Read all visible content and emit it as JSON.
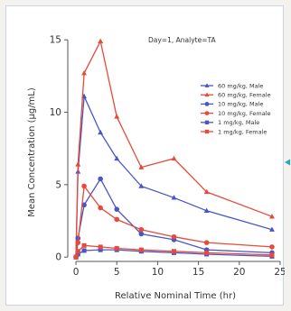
{
  "chart_data": {
    "type": "line",
    "title": "Day=1, Analyte=TA",
    "xlabel": "Relative Nominal Time (hr)",
    "ylabel": "Mean Concentration (µg/mL)",
    "xlim": [
      -1,
      25
    ],
    "ylim": [
      -0.3,
      15.2
    ],
    "xticks": [
      0,
      5,
      10,
      15,
      20,
      25
    ],
    "yticks": [
      0,
      5,
      10,
      15
    ],
    "grid": false,
    "legend_position": "right",
    "series": [
      {
        "name": "60 mg/kg, Male",
        "color": "#4a55c5",
        "marker": "triangle",
        "x": [
          0,
          0.25,
          1,
          3,
          5,
          8,
          12,
          16,
          24
        ],
        "y": [
          0,
          5.9,
          11.1,
          8.6,
          6.8,
          4.9,
          4.1,
          3.2,
          1.9
        ]
      },
      {
        "name": "60 mg/kg, Female",
        "color": "#e54a3c",
        "marker": "triangle",
        "x": [
          0,
          0.25,
          1,
          3,
          5,
          8,
          12,
          16,
          24
        ],
        "y": [
          0,
          6.4,
          12.7,
          14.9,
          9.7,
          6.2,
          6.8,
          4.5,
          2.8
        ]
      },
      {
        "name": "10 mg/kg, Male",
        "color": "#4a55c5",
        "marker": "circle",
        "x": [
          0,
          0.25,
          1,
          3,
          5,
          8,
          12,
          16,
          24
        ],
        "y": [
          0,
          1.3,
          3.6,
          5.4,
          3.3,
          1.6,
          1.2,
          0.5,
          0.3
        ]
      },
      {
        "name": "10 mg/kg, Female",
        "color": "#e54a3c",
        "marker": "circle",
        "x": [
          0,
          0.25,
          1,
          3,
          5,
          8,
          12,
          16,
          24
        ],
        "y": [
          0,
          1.0,
          4.9,
          3.4,
          2.6,
          1.9,
          1.4,
          1.0,
          0.7
        ]
      },
      {
        "name": "1 mg/kg, Male",
        "color": "#4a55c5",
        "marker": "square",
        "x": [
          0,
          0.25,
          1,
          3,
          5,
          8,
          12,
          16,
          24
        ],
        "y": [
          0,
          0.2,
          0.45,
          0.5,
          0.5,
          0.4,
          0.3,
          0.2,
          0.05
        ]
      },
      {
        "name": "1 mg/kg, Female",
        "color": "#e54a3c",
        "marker": "square",
        "x": [
          0,
          0.25,
          1,
          3,
          5,
          8,
          12,
          16,
          24
        ],
        "y": [
          0,
          0.4,
          0.8,
          0.7,
          0.6,
          0.5,
          0.4,
          0.3,
          0.15
        ]
      }
    ]
  },
  "decor": {
    "arrow_color": "#2aa8b5"
  }
}
